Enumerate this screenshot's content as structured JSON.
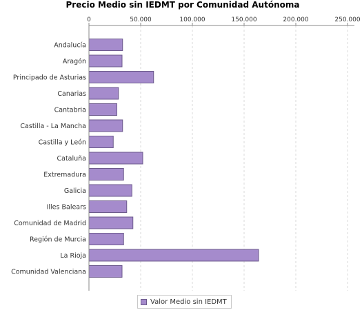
{
  "chart_data": {
    "type": "bar",
    "orientation": "horizontal",
    "title": "Precio Medio sin IEDMT por Comunidad Autónoma",
    "xlabel": "",
    "ylabel": "",
    "xlim": [
      0,
      250000
    ],
    "ticks": [
      0,
      50000,
      100000,
      150000,
      200000,
      250000
    ],
    "tick_labels": [
      "0",
      "50.000",
      "100.000",
      "150.000",
      "200.000",
      "250.000"
    ],
    "tick_axis_position": "top",
    "grid": true,
    "legend_position": "bottom",
    "categories": [
      "Andalucía",
      "Aragón",
      "Principado de Asturias",
      "Canarias",
      "Cantabria",
      "Castilla - La Mancha",
      "Castilla y León",
      "Cataluña",
      "Extremadura",
      "Galicia",
      "Illes Balears",
      "Comunidad de Madrid",
      "Región de Murcia",
      "La Rioja",
      "Comunidad Valenciana"
    ],
    "series": [
      {
        "name": "Valor Medio sin IEDMT",
        "color": "#a58bcc",
        "values": [
          32500,
          32000,
          62500,
          28500,
          27000,
          32500,
          23500,
          52000,
          33500,
          41500,
          36500,
          42500,
          33500,
          164000,
          32000
        ]
      }
    ]
  },
  "colors": {
    "bar_fill": "#a58bcc",
    "bar_stroke": "#6c5a8c",
    "grid": "#d9d9d9",
    "axis": "#888888"
  }
}
